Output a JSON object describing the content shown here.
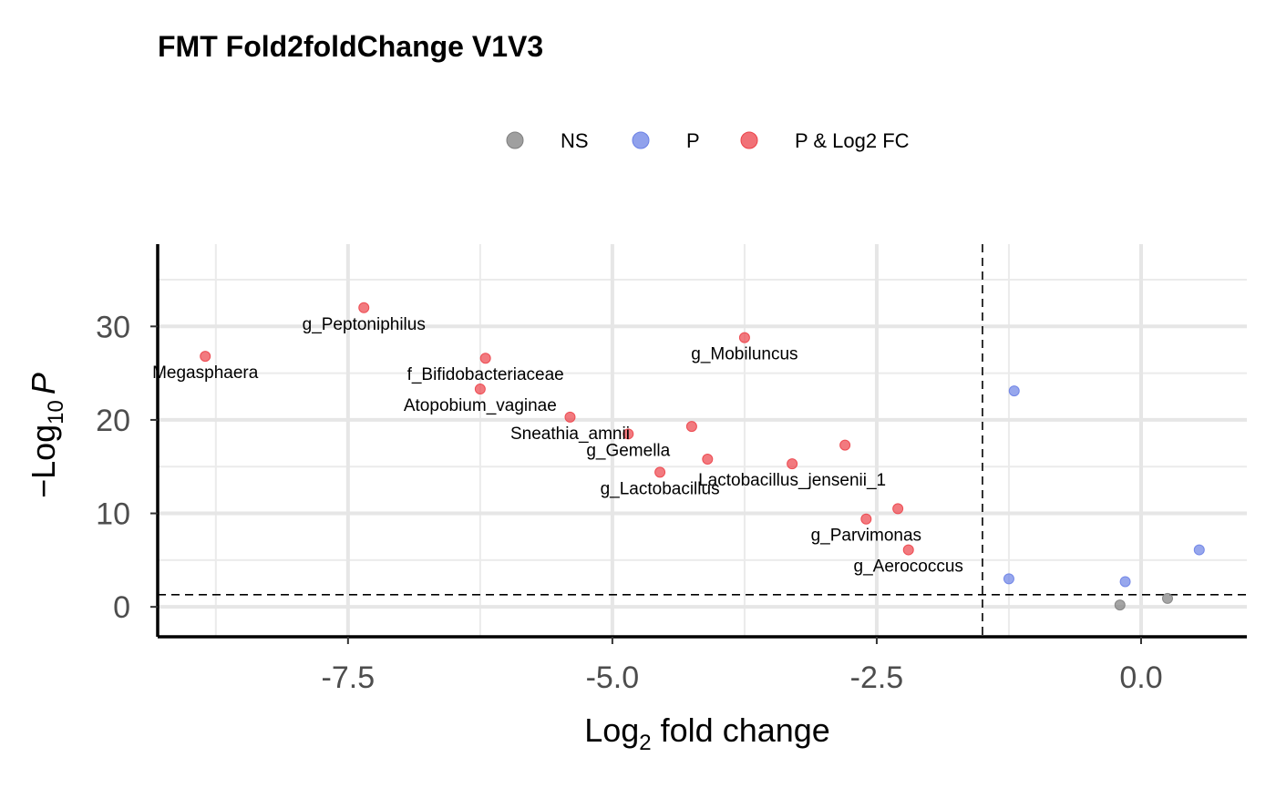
{
  "chart_data": {
    "type": "scatter",
    "title": "FMT Fold2foldChange V1V3",
    "xlabel": {
      "base": "Log",
      "sub": "2",
      "rest": " fold change"
    },
    "ylabel": {
      "prefix": "−Log",
      "sub": "10",
      "italic": "P"
    },
    "xlim": [
      -9.3,
      1.0
    ],
    "ylim": [
      -3.2,
      38.8
    ],
    "x_ticks": [
      -7.5,
      -5.0,
      -2.5,
      0.0
    ],
    "x_tick_labels": [
      "-7.5",
      "-5.0",
      "-2.5",
      "0.0"
    ],
    "y_ticks": [
      0,
      10,
      20,
      30
    ],
    "y_tick_labels": [
      "0",
      "10",
      "20",
      "30"
    ],
    "grid": true,
    "legend_position": "top",
    "thresholds": {
      "log2fc": -1.5,
      "neglog10p": 1.3
    },
    "legend": [
      {
        "key": "NS",
        "label": "NS",
        "color": "#7f7f7f"
      },
      {
        "key": "P",
        "label": "P",
        "color": "#6b81e6"
      },
      {
        "key": "PFC",
        "label": "P & Log2 FC",
        "color": "#ec4249"
      }
    ],
    "points": [
      {
        "x": -7.35,
        "y": 32.0,
        "group": "PFC",
        "label": "g_Peptoniphilus"
      },
      {
        "x": -8.85,
        "y": 26.8,
        "group": "PFC",
        "label": "Megasphaera"
      },
      {
        "x": -6.2,
        "y": 26.6,
        "group": "PFC",
        "label": "f_Bifidobacteriaceae"
      },
      {
        "x": -6.25,
        "y": 23.3,
        "group": "PFC",
        "label": "Atopobium_vaginae"
      },
      {
        "x": -5.4,
        "y": 20.3,
        "group": "PFC",
        "label": "Sneathia_amnii"
      },
      {
        "x": -3.75,
        "y": 28.8,
        "group": "PFC",
        "label": "g_Mobiluncus"
      },
      {
        "x": -4.25,
        "y": 19.3,
        "group": "PFC",
        "label": ""
      },
      {
        "x": -4.85,
        "y": 18.5,
        "group": "PFC",
        "label": "g_Gemella"
      },
      {
        "x": -4.1,
        "y": 15.8,
        "group": "PFC",
        "label": ""
      },
      {
        "x": -4.55,
        "y": 14.4,
        "group": "PFC",
        "label": "g_Lactobacillus"
      },
      {
        "x": -3.3,
        "y": 15.3,
        "group": "PFC",
        "label": "Lactobacillus_jensenii_1"
      },
      {
        "x": -2.8,
        "y": 17.3,
        "group": "PFC",
        "label": ""
      },
      {
        "x": -2.3,
        "y": 10.5,
        "group": "PFC",
        "label": ""
      },
      {
        "x": -2.6,
        "y": 9.4,
        "group": "PFC",
        "label": "g_Parvimonas"
      },
      {
        "x": -2.2,
        "y": 6.1,
        "group": "PFC",
        "label": "g_Aerococcus"
      },
      {
        "x": -1.2,
        "y": 23.1,
        "group": "P",
        "label": ""
      },
      {
        "x": 0.55,
        "y": 6.1,
        "group": "P",
        "label": ""
      },
      {
        "x": -1.25,
        "y": 3.0,
        "group": "P",
        "label": ""
      },
      {
        "x": -0.15,
        "y": 2.7,
        "group": "P",
        "label": ""
      },
      {
        "x": -0.2,
        "y": 0.2,
        "group": "NS",
        "label": ""
      },
      {
        "x": 0.25,
        "y": 0.9,
        "group": "NS",
        "label": ""
      }
    ]
  }
}
